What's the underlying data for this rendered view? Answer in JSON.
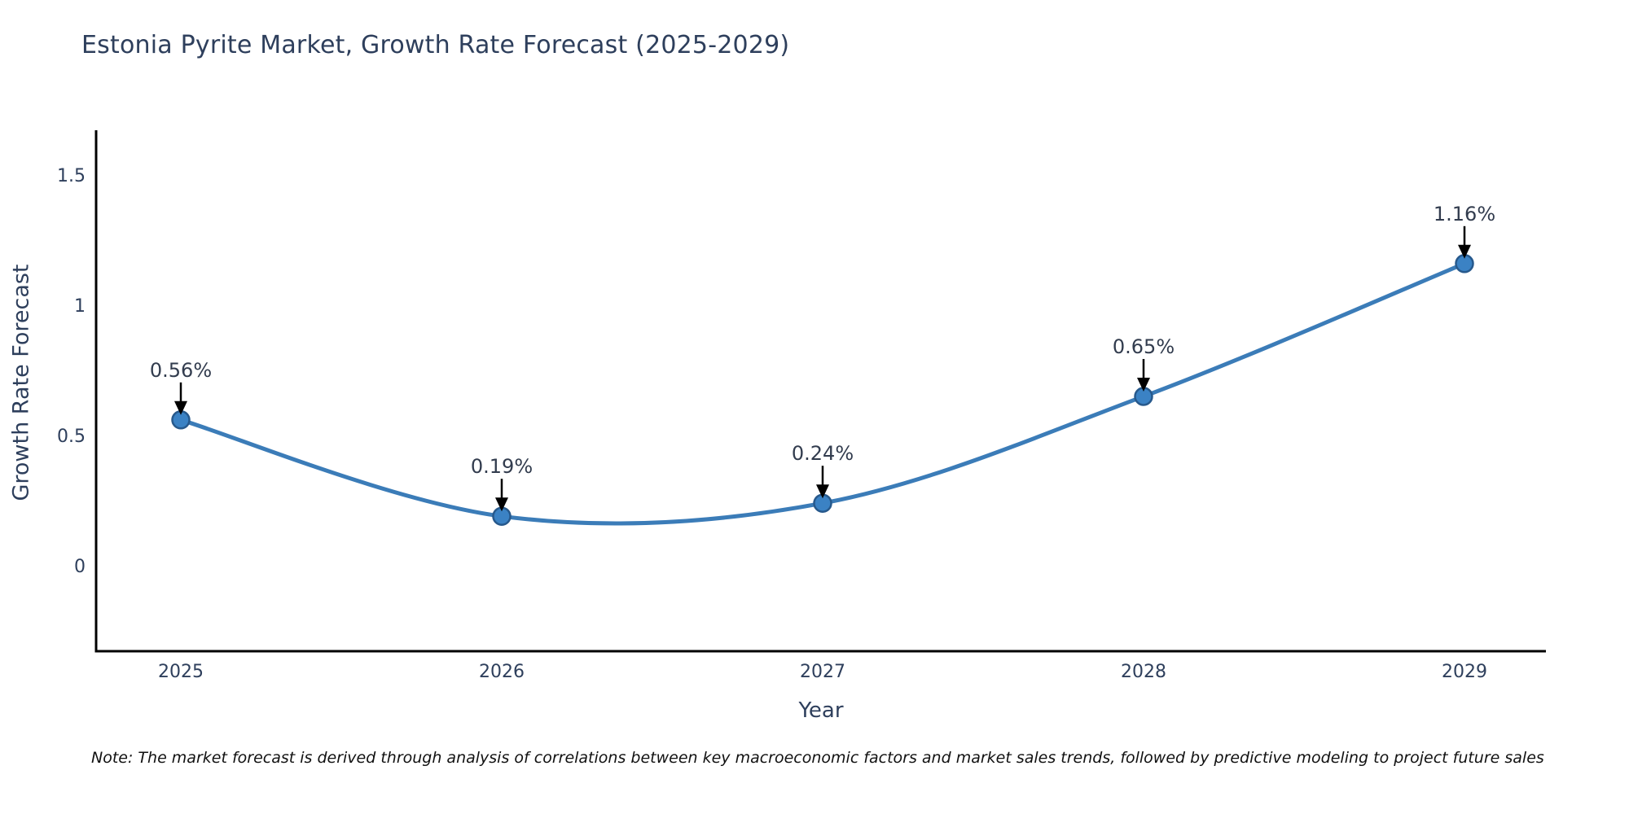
{
  "page": {
    "note": "Note: The market forecast is derived through analysis of correlations between key macroeconomic factors and market sales trends, followed by predictive modeling to project future sales"
  },
  "chart_data": {
    "type": "line",
    "title": "Estonia Pyrite Market, Growth Rate Forecast (2025-2029)",
    "xlabel": "Year",
    "ylabel": "Growth Rate Forecast",
    "categories": [
      "2025",
      "2026",
      "2027",
      "2028",
      "2029"
    ],
    "values": [
      0.56,
      0.19,
      0.24,
      0.65,
      1.16
    ],
    "point_labels": [
      "0.56%",
      "0.19%",
      "0.24%",
      "0.65%",
      "1.16%"
    ],
    "yticks": [
      {
        "value": 0,
        "label": "0"
      },
      {
        "value": 0.5,
        "label": "0.5"
      },
      {
        "value": 1,
        "label": "1"
      },
      {
        "value": 1.5,
        "label": "1.5"
      }
    ],
    "ylim": [
      -0.33,
      1.67
    ],
    "xlim": [
      2024.74,
      2029.25
    ],
    "grid": false,
    "legend": false,
    "curve": "smooth-spline",
    "line_color": "#3b7cb8",
    "marker_color": "#3b82c4",
    "marker_edge_color": "#27598c",
    "arrow_color": "#000000",
    "axis_color": "#000000",
    "text_color": "#2e3f5c",
    "annotation_text_color": "#323c4e",
    "note_text_color": "#111111"
  }
}
